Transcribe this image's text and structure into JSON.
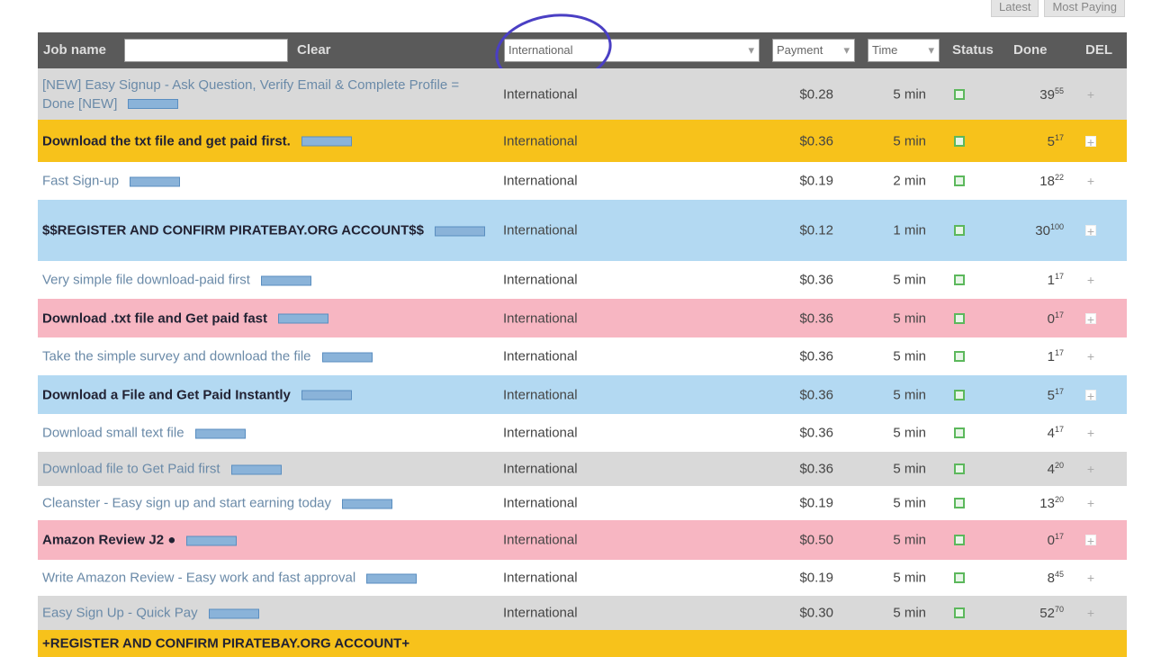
{
  "top_buttons": [
    "Latest",
    "Most Paying"
  ],
  "header": {
    "job_name_label": "Job name",
    "job_name_value": "",
    "clear_label": "Clear",
    "country_select": "International",
    "payment_select": "Payment",
    "time_select": "Time",
    "status_label": "Status",
    "done_label": "Done",
    "del_label": "DEL"
  },
  "colors": {
    "gray": "#d9d9d9",
    "yellow": "#f7c21b",
    "white": "#ffffff",
    "blue": "#b3d9f2",
    "pink": "#f7b6c2",
    "header": "#5a5a5a"
  },
  "rows": [
    {
      "name": "[NEW] Easy Signup - Ask Question, Verify Email & Complete Profile = Done [NEW]",
      "country": "International",
      "payment": "$0.28",
      "time": "5 min",
      "done": "39",
      "total": "55",
      "color": "gray",
      "bold": false
    },
    {
      "name": "Download the txt file and get paid first.",
      "country": "International",
      "payment": "$0.36",
      "time": "5 min",
      "done": "5",
      "total": "17",
      "color": "yellow",
      "bold": true
    },
    {
      "name": "Fast Sign-up",
      "country": "International",
      "payment": "$0.19",
      "time": "2 min",
      "done": "18",
      "total": "22",
      "color": "white",
      "bold": false
    },
    {
      "name": "$$REGISTER AND CONFIRM PIRATEBAY.ORG ACCOUNT$$",
      "country": "International",
      "payment": "$0.12",
      "time": "1 min",
      "done": "30",
      "total": "100",
      "color": "blue",
      "bold": true
    },
    {
      "name": "Very simple file download-paid first",
      "country": "International",
      "payment": "$0.36",
      "time": "5 min",
      "done": "1",
      "total": "17",
      "color": "white",
      "bold": false
    },
    {
      "name": "Download .txt file and Get paid fast",
      "country": "International",
      "payment": "$0.36",
      "time": "5 min",
      "done": "0",
      "total": "17",
      "color": "pink",
      "bold": true
    },
    {
      "name": "Take the simple survey and download the file",
      "country": "International",
      "payment": "$0.36",
      "time": "5 min",
      "done": "1",
      "total": "17",
      "color": "white",
      "bold": false
    },
    {
      "name": "Download a File and Get Paid Instantly",
      "country": "International",
      "payment": "$0.36",
      "time": "5 min",
      "done": "5",
      "total": "17",
      "color": "blue",
      "bold": true
    },
    {
      "name": "Download small text file",
      "country": "International",
      "payment": "$0.36",
      "time": "5 min",
      "done": "4",
      "total": "17",
      "color": "white",
      "bold": false
    },
    {
      "name": "Download file to Get Paid first",
      "country": "International",
      "payment": "$0.36",
      "time": "5 min",
      "done": "4",
      "total": "20",
      "color": "gray",
      "bold": false
    },
    {
      "name": "Cleanster - Easy sign up and start earning today",
      "country": "International",
      "payment": "$0.19",
      "time": "5 min",
      "done": "13",
      "total": "20",
      "color": "white",
      "bold": false
    },
    {
      "name": "Amazon Review J2 ●",
      "country": "International",
      "payment": "$0.50",
      "time": "5 min",
      "done": "0",
      "total": "17",
      "color": "pink",
      "bold": true
    },
    {
      "name": "Write Amazon Review - Easy work and fast approval",
      "country": "International",
      "payment": "$0.19",
      "time": "5 min",
      "done": "8",
      "total": "45",
      "color": "white",
      "bold": false
    },
    {
      "name": "Easy Sign Up - Quick Pay",
      "country": "International",
      "payment": "$0.30",
      "time": "5 min",
      "done": "52",
      "total": "70",
      "color": "gray",
      "bold": false
    },
    {
      "name": "+REGISTER AND CONFIRM PIRATEBAY.ORG ACCOUNT+",
      "country": "",
      "payment": "",
      "time": "",
      "done": "",
      "total": "",
      "color": "yellow",
      "bold": true
    }
  ]
}
